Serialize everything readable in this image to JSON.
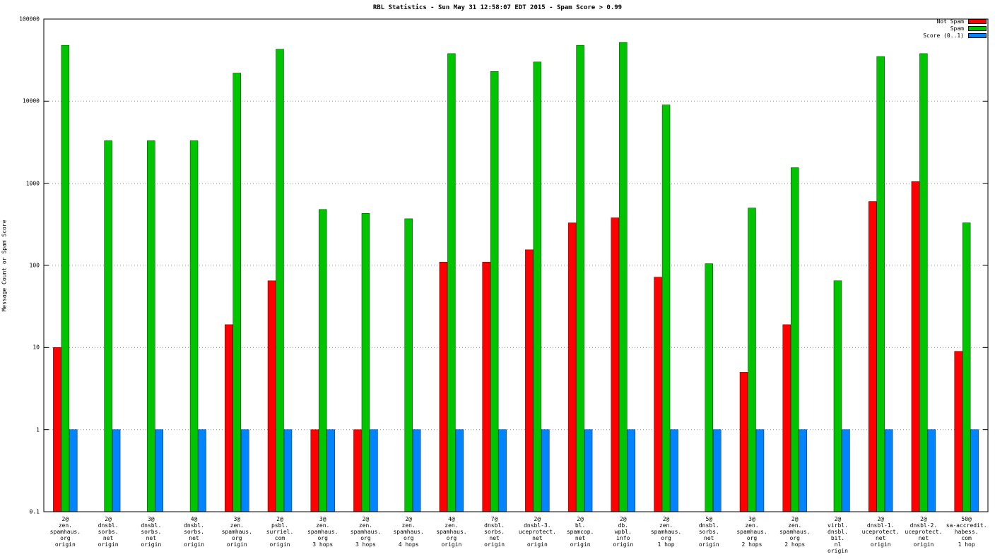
{
  "chart_data": {
    "type": "bar",
    "title": "RBL Statistics - Sun May 31 12:58:07 EDT 2015 - Spam Score > 0.99",
    "xlabel": "",
    "ylabel": "Message Count or Spam Score",
    "y_scale": "log",
    "ylim": [
      0.1,
      100000
    ],
    "y_ticks": [
      100000,
      10000,
      1000,
      100,
      10,
      1,
      0.1
    ],
    "grid": "horizontal-dotted",
    "legend_position": "top-right",
    "categories": [
      "2@\nzen.\nspamhaus.\norg\norigin",
      "2@\ndnsbl.\nsorbs.\nnet\norigin",
      "3@\ndnsbl.\nsorbs.\nnet\norigin",
      "4@\ndnsbl.\nsorbs.\nnet\norigin",
      "3@\nzen.\nspamhaus.\norg\norigin",
      "2@\npsbl.\nsurriel.\ncom\norigin",
      "3@\nzen.\nspamhaus.\norg\n3 hops",
      "2@\nzen.\nspamhaus.\norg\n3 hops",
      "2@\nzen.\nspamhaus.\norg\n4 hops",
      "4@\nzen.\nspamhaus.\norg\norigin",
      "7@\ndnsbl.\nsorbs.\nnet\norigin",
      "2@\ndnsbl-3.\nuceprotect.\nnet\norigin",
      "2@\nbl.\nspamcop.\nnet\norigin",
      "2@\ndb.\nwpbl.\ninfo\norigin",
      "2@\nzen.\nspamhaus.\norg\n1 hop",
      "5@\ndnsbl.\nsorbs.\nnet\norigin",
      "3@\nzen.\nspamhaus.\norg\n2 hops",
      "2@\nzen.\nspamhaus.\norg\n2 hops",
      "2@\nvirbl.\ndnsbl.\nbit.\nnl\norigin",
      "2@\ndnsbl-1.\nuceprotect.\nnet\norigin",
      "2@\ndnsbl-2.\nuceprotect.\nnet\norigin",
      "50@\nsa-accredit.\nhabess.\ncom\n1 hop"
    ],
    "series": [
      {
        "name": "Not Spam",
        "color": "#ff0000",
        "values": [
          10,
          null,
          null,
          null,
          19,
          65,
          1,
          1,
          null,
          110,
          110,
          155,
          330,
          380,
          72,
          null,
          5,
          19,
          null,
          600,
          1050,
          9
        ]
      },
      {
        "name": "Spam",
        "color": "#00c400",
        "values": [
          48000,
          3300,
          3300,
          3300,
          22000,
          43000,
          480,
          430,
          370,
          38000,
          23000,
          30000,
          48000,
          52000,
          9000,
          105,
          500,
          1550,
          65,
          35000,
          38000,
          330
        ]
      },
      {
        "name": "Score (0..1)",
        "color": "#0084ff",
        "values": [
          1,
          1,
          1,
          1,
          1,
          1,
          1,
          1,
          1,
          1,
          1,
          1,
          1,
          1,
          1,
          1,
          1,
          1,
          1,
          1,
          1,
          1
        ]
      }
    ]
  }
}
